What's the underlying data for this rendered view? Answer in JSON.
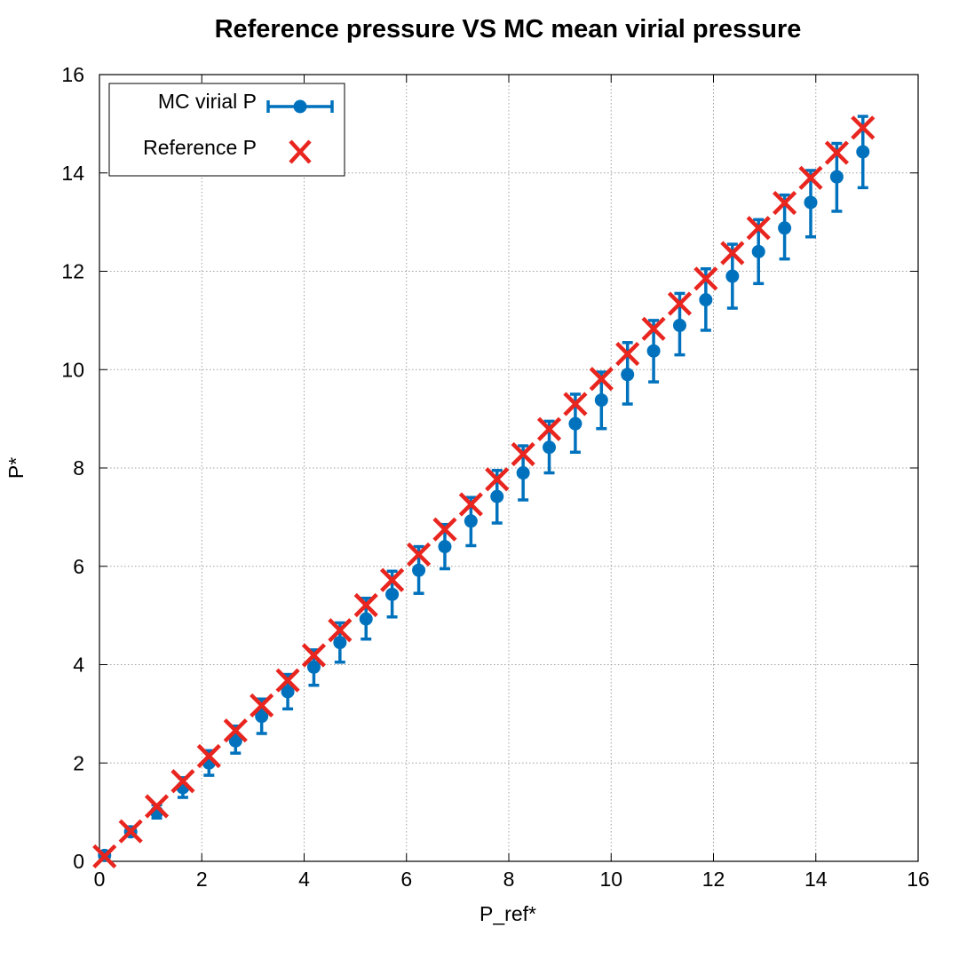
{
  "chart_data": {
    "type": "scatter",
    "title": "Reference pressure VS MC mean virial pressure",
    "xlabel": "P_ref*",
    "ylabel": "P*",
    "xlim": [
      0,
      16
    ],
    "ylim": [
      0,
      16
    ],
    "xticks": [
      "0",
      "2",
      "4",
      "6",
      "8",
      "10",
      "12",
      "14",
      "16"
    ],
    "yticks": [
      "0",
      "2",
      "4",
      "6",
      "8",
      "10",
      "12",
      "14",
      "16"
    ],
    "grid": true,
    "legend_position": "top-left",
    "series": [
      {
        "name": "MC virial P",
        "style": "points-errorbars",
        "color": "#0072bd",
        "x": [
          0.1,
          0.61,
          1.12,
          1.63,
          2.14,
          2.66,
          3.17,
          3.68,
          4.19,
          4.7,
          5.21,
          5.72,
          6.24,
          6.75,
          7.26,
          7.77,
          8.28,
          8.79,
          9.3,
          9.81,
          10.32,
          10.83,
          11.34,
          11.85,
          12.37,
          12.88,
          13.39,
          13.9,
          14.41,
          14.92
        ],
        "y": [
          0.12,
          0.6,
          1.0,
          1.5,
          2.0,
          2.45,
          2.95,
          3.45,
          3.95,
          4.45,
          4.93,
          5.43,
          5.92,
          6.4,
          6.92,
          7.42,
          7.9,
          8.42,
          8.9,
          9.38,
          9.9,
          10.38,
          10.9,
          11.42,
          11.9,
          12.4,
          12.88,
          13.4,
          13.92,
          14.43
        ],
        "y_low": [
          0.05,
          0.52,
          0.88,
          1.3,
          1.75,
          2.2,
          2.6,
          3.1,
          3.58,
          4.05,
          4.52,
          4.97,
          5.45,
          5.95,
          6.42,
          6.88,
          7.35,
          7.9,
          8.32,
          8.8,
          9.3,
          9.75,
          10.3,
          10.8,
          11.25,
          11.75,
          12.25,
          12.7,
          13.22,
          13.7
        ],
        "y_high": [
          0.2,
          0.7,
          1.15,
          1.7,
          2.25,
          2.75,
          3.3,
          3.8,
          4.3,
          4.85,
          5.35,
          5.9,
          6.4,
          6.85,
          7.4,
          7.95,
          8.45,
          8.95,
          9.5,
          9.95,
          10.55,
          11.0,
          11.55,
          12.05,
          12.55,
          13.05,
          13.55,
          14.05,
          14.6,
          15.15
        ]
      },
      {
        "name": "Reference P",
        "style": "x-markers",
        "color": "#e8251e",
        "x": [
          0.1,
          0.61,
          1.12,
          1.63,
          2.14,
          2.66,
          3.17,
          3.68,
          4.19,
          4.7,
          5.21,
          5.72,
          6.24,
          6.75,
          7.26,
          7.77,
          8.28,
          8.79,
          9.3,
          9.81,
          10.32,
          10.83,
          11.34,
          11.85,
          12.37,
          12.88,
          13.39,
          13.9,
          14.41,
          14.92
        ],
        "y": [
          0.1,
          0.61,
          1.12,
          1.63,
          2.14,
          2.66,
          3.17,
          3.68,
          4.19,
          4.7,
          5.21,
          5.72,
          6.24,
          6.75,
          7.26,
          7.77,
          8.28,
          8.79,
          9.3,
          9.81,
          10.32,
          10.83,
          11.34,
          11.85,
          12.37,
          12.88,
          13.39,
          13.9,
          14.41,
          14.92
        ]
      }
    ]
  }
}
